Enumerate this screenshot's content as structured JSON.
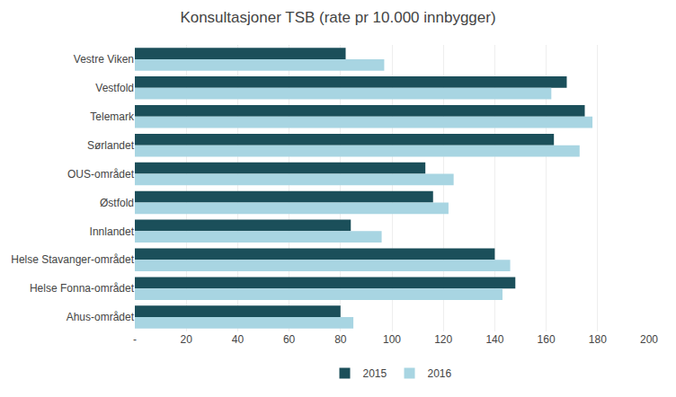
{
  "chart_data": {
    "type": "bar",
    "orientation": "horizontal",
    "title": "Konsultasjoner TSB (rate pr 10.000 innbygger)",
    "categories": [
      "Vestre Viken",
      "Vestfold",
      "Telemark",
      "Sørlandet",
      "OUS-området",
      "Østfold",
      "Innlandet",
      "Helse Stavanger-området",
      "Helse Fonna-området",
      "Ahus-området"
    ],
    "series": [
      {
        "name": "2015",
        "color": "#1b4f5a",
        "values": [
          82,
          168,
          175,
          163,
          113,
          116,
          84,
          140,
          148,
          80
        ]
      },
      {
        "name": "2016",
        "color": "#a8d5e2",
        "values": [
          97,
          162,
          178,
          173,
          124,
          122,
          96,
          146,
          143,
          85
        ]
      }
    ],
    "xlim": [
      0,
      200
    ],
    "xticks": [
      {
        "value": 0,
        "label": "-"
      },
      20,
      40,
      60,
      80,
      100,
      120,
      140,
      160,
      180,
      200
    ],
    "grid": true,
    "legend": "bottom"
  }
}
